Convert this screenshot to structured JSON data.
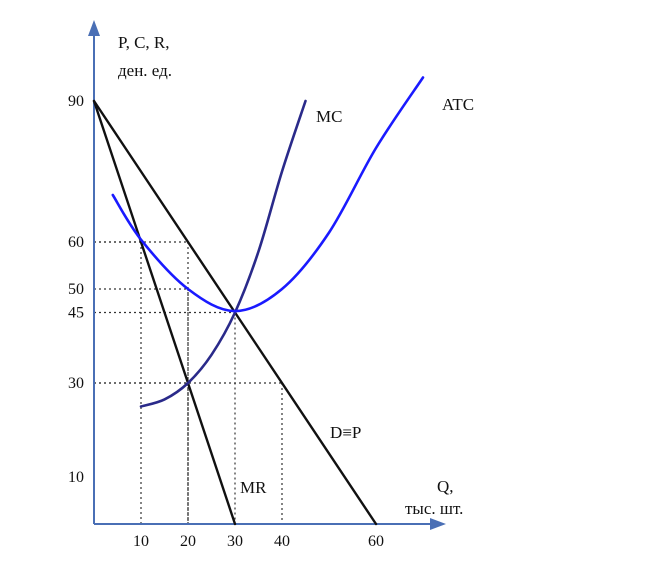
{
  "chart_data": {
    "type": "line",
    "y_axis_label_line1": "P, C, R,",
    "y_axis_label_line2": "ден. ед.",
    "x_axis_label_line1": "Q,",
    "x_axis_label_line2": "тыс. шт.",
    "x_ticks": [
      10,
      20,
      30,
      40,
      60
    ],
    "y_ticks": [
      90,
      60,
      50,
      45,
      30,
      10
    ],
    "series": [
      {
        "name": "D≡P",
        "color": "#111111",
        "points": [
          [
            0,
            90
          ],
          [
            60,
            0
          ]
        ]
      },
      {
        "name": "MR",
        "color": "#111111",
        "points": [
          [
            0,
            90
          ],
          [
            30,
            0
          ]
        ]
      },
      {
        "name": "MC",
        "color": "#2a2a8a",
        "points": [
          [
            10,
            25
          ],
          [
            15,
            26.5
          ],
          [
            20,
            30
          ],
          [
            25,
            36
          ],
          [
            30,
            45
          ],
          [
            35,
            58
          ],
          [
            40,
            75
          ],
          [
            45,
            90
          ]
        ]
      },
      {
        "name": "ATC",
        "color": "#1a1aff",
        "points": [
          [
            4,
            70
          ],
          [
            10,
            60.5
          ],
          [
            20,
            50
          ],
          [
            30,
            45.3
          ],
          [
            40,
            50
          ],
          [
            50,
            62
          ],
          [
            60,
            80
          ],
          [
            70,
            95
          ]
        ]
      }
    ],
    "guides": [
      {
        "x": 10,
        "y": 60
      },
      {
        "x": 20,
        "y": 60
      },
      {
        "x": 20,
        "y": 50
      },
      {
        "x": 20,
        "y": 30
      },
      {
        "x": 30,
        "y": 45
      },
      {
        "x": 40,
        "y": 30
      }
    ]
  }
}
